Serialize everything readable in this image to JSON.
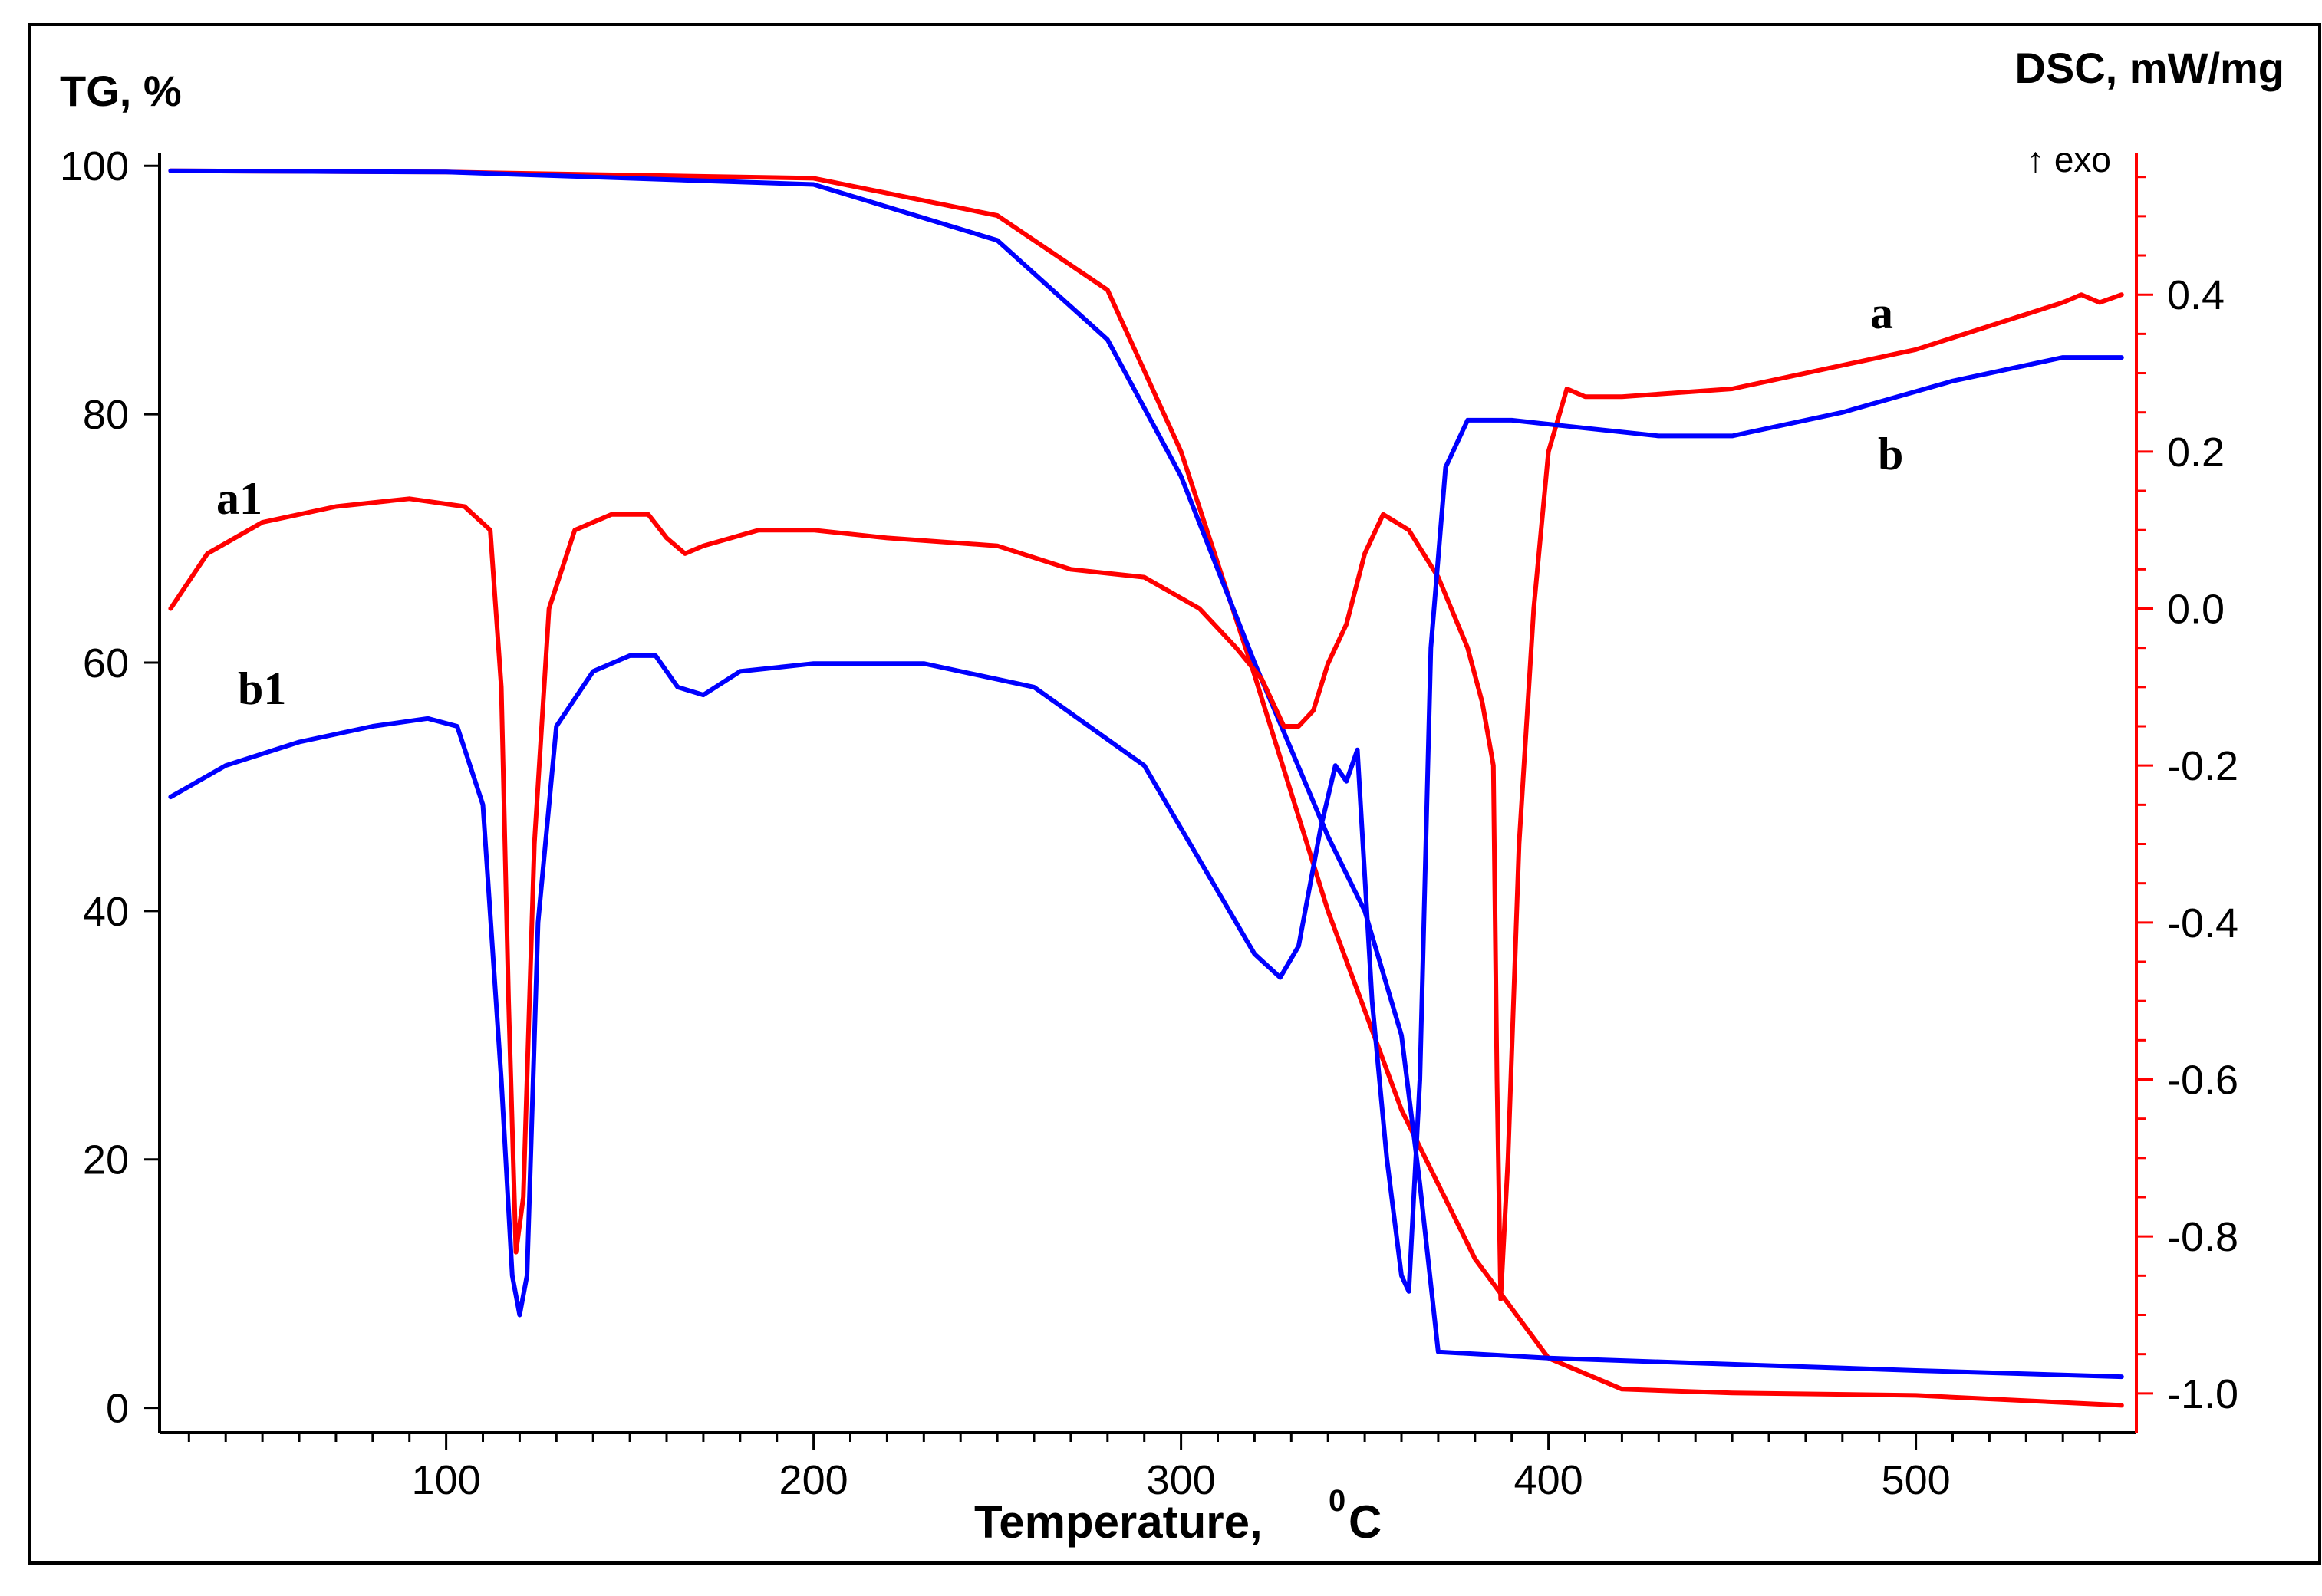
{
  "chart_data": {
    "type": "line",
    "title": "",
    "xlabel": "Temperature,",
    "xlabel_unit_sup": "0",
    "xlabel_unit": "C",
    "ylabel_left": "TG, %",
    "ylabel_right": "DSC, mW/mg",
    "exo_marker": "↑ exo",
    "xlim": [
      22,
      560
    ],
    "ylim_left": [
      -2,
      101
    ],
    "ylim_right": [
      -1.05,
      0.58
    ],
    "x_ticks": [
      100,
      200,
      300,
      400,
      500
    ],
    "x_tick_labels": [
      "100",
      "200",
      "300",
      "400",
      "500"
    ],
    "y_left_ticks": [
      0,
      20,
      40,
      60,
      80,
      100
    ],
    "y_left_tick_labels": [
      "0",
      "20",
      "40",
      "60",
      "80",
      "100"
    ],
    "y_right_ticks": [
      0.4,
      0.2,
      0.0,
      -0.2,
      -0.4,
      -0.6,
      -0.8,
      -1.0
    ],
    "y_right_tick_labels": [
      "0.4",
      "0.2",
      "0.0",
      "-0.2",
      "-0.4",
      "-0.6",
      "-0.8",
      "-1.0"
    ],
    "colors": {
      "a": "#ff0000",
      "b": "#0000ff",
      "right_axis": "#ff0000"
    },
    "series": [
      {
        "name": "a",
        "label": "a",
        "kind": "TG",
        "axis": "left",
        "color": "#ff0000",
        "x": [
          25,
          100,
          200,
          250,
          280,
          300,
          320,
          340,
          360,
          380,
          400,
          420,
          450,
          500,
          556
        ],
        "y": [
          99.6,
          99.5,
          99.0,
          96,
          90,
          77,
          59,
          40,
          24,
          12,
          4,
          1.5,
          1.2,
          1.0,
          0.2
        ]
      },
      {
        "name": "b",
        "label": "b",
        "kind": "TG",
        "axis": "left",
        "color": "#0000ff",
        "x": [
          25,
          100,
          200,
          250,
          280,
          300,
          320,
          340,
          350,
          360,
          365,
          370,
          400,
          450,
          500,
          556
        ],
        "y": [
          99.6,
          99.5,
          98.5,
          94,
          86,
          75,
          60,
          46,
          40,
          30,
          18,
          4.5,
          4.0,
          3.5,
          3.0,
          2.5
        ]
      },
      {
        "name": "a1",
        "label": "a1",
        "kind": "DSC",
        "axis": "right",
        "color": "#ff0000",
        "x": [
          25,
          35,
          50,
          70,
          90,
          105,
          112,
          115,
          117,
          119,
          121,
          124,
          128,
          135,
          145,
          155,
          160,
          165,
          170,
          185,
          200,
          220,
          250,
          270,
          290,
          305,
          315,
          322,
          328,
          332,
          336,
          340,
          345,
          350,
          355,
          362,
          370,
          378,
          382,
          385,
          386,
          387,
          389,
          392,
          396,
          400,
          405,
          410,
          420,
          450,
          480,
          500,
          520,
          540,
          545,
          550,
          556
        ],
        "y": [
          0.0,
          0.07,
          0.11,
          0.13,
          0.14,
          0.13,
          0.1,
          -0.1,
          -0.5,
          -0.82,
          -0.75,
          -0.3,
          0.0,
          0.1,
          0.12,
          0.12,
          0.09,
          0.07,
          0.08,
          0.1,
          0.1,
          0.09,
          0.08,
          0.05,
          0.04,
          0.0,
          -0.05,
          -0.09,
          -0.15,
          -0.15,
          -0.13,
          -0.07,
          -0.02,
          0.07,
          0.12,
          0.1,
          0.04,
          -0.05,
          -0.12,
          -0.2,
          -0.6,
          -0.88,
          -0.7,
          -0.3,
          -0.0,
          0.2,
          0.28,
          0.27,
          0.27,
          0.28,
          0.31,
          0.33,
          0.36,
          0.39,
          0.4,
          0.39,
          0.4
        ]
      },
      {
        "name": "b1",
        "label": "b1",
        "kind": "DSC",
        "axis": "right",
        "color": "#0000ff",
        "x": [
          25,
          40,
          60,
          80,
          95,
          103,
          110,
          115,
          118,
          120,
          122,
          125,
          130,
          140,
          150,
          157,
          163,
          170,
          180,
          200,
          230,
          260,
          290,
          310,
          320,
          327,
          332,
          338,
          342,
          345,
          348,
          352,
          356,
          360,
          362,
          365,
          368,
          372,
          378,
          390,
          410,
          430,
          450,
          480,
          510,
          540,
          556
        ],
        "y": [
          -0.24,
          -0.2,
          -0.17,
          -0.15,
          -0.14,
          -0.15,
          -0.25,
          -0.6,
          -0.85,
          -0.9,
          -0.85,
          -0.4,
          -0.15,
          -0.08,
          -0.06,
          -0.06,
          -0.1,
          -0.11,
          -0.08,
          -0.07,
          -0.07,
          -0.1,
          -0.2,
          -0.36,
          -0.44,
          -0.47,
          -0.43,
          -0.28,
          -0.2,
          -0.22,
          -0.18,
          -0.5,
          -0.7,
          -0.85,
          -0.87,
          -0.6,
          -0.05,
          0.18,
          0.24,
          0.24,
          0.23,
          0.22,
          0.22,
          0.25,
          0.29,
          0.32,
          0.32
        ]
      }
    ]
  }
}
